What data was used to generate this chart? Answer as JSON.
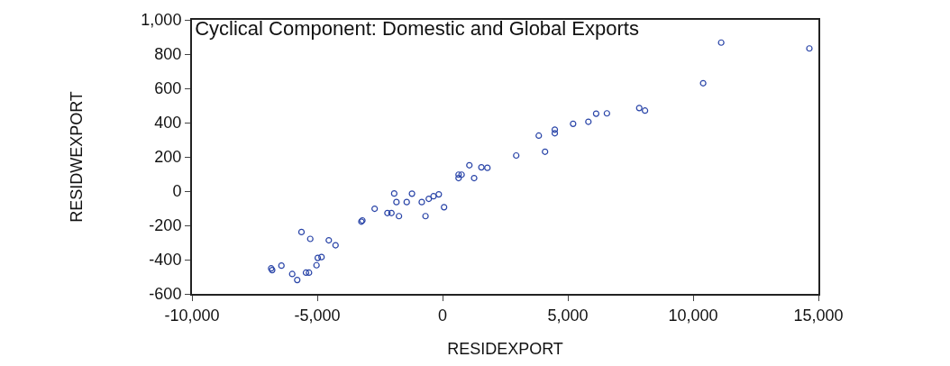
{
  "chart_data": {
    "type": "scatter",
    "title": "Cyclical Component: Domestic and Global Exports",
    "xlabel": "RESIDEXPORT",
    "ylabel": "RESIDWEXPORT",
    "x": [
      -6840,
      -6800,
      -6430,
      -6000,
      -5800,
      -5630,
      -5280,
      -5450,
      -5330,
      -5030,
      -4980,
      -4830,
      -4540,
      -4270,
      -3240,
      -3200,
      -2710,
      -2200,
      -2040,
      -1930,
      -1840,
      -1740,
      -1430,
      -1220,
      -830,
      -680,
      -550,
      -360,
      -150,
      60,
      640,
      760,
      640,
      1070,
      1260,
      1550,
      1790,
      2940,
      3840,
      4090,
      4480,
      4480,
      5210,
      5820,
      6130,
      6560,
      7850,
      8080,
      10400,
      11120,
      14640
    ],
    "values": [
      -451,
      -461,
      -435,
      -484,
      -519,
      -239,
      -279,
      -476,
      -476,
      -433,
      -390,
      -385,
      -287,
      -316,
      -178,
      -171,
      -103,
      -128,
      -128,
      -14,
      -64,
      -146,
      -64,
      -15,
      -64,
      -146,
      -45,
      -30,
      -19,
      -94,
      96,
      96,
      76,
      151,
      76,
      139,
      136,
      208,
      324,
      230,
      359,
      338,
      393,
      405,
      452,
      454,
      485,
      470,
      630,
      867,
      833
    ],
    "color": "#2a45a8",
    "marker": "circle",
    "xlim": [
      -10000,
      15000
    ],
    "xticks": [
      {
        "value": -10000,
        "label": "-10,000"
      },
      {
        "value": -5000,
        "label": "-5,000"
      },
      0,
      {
        "value": 5000,
        "label": "5,000"
      },
      {
        "value": 10000,
        "label": "10,000"
      },
      {
        "value": 15000,
        "label": "15,000"
      }
    ],
    "ylim": [
      -600,
      1000
    ],
    "yticks": [
      -600,
      -400,
      -200,
      0,
      200,
      400,
      600,
      800,
      {
        "value": 1000,
        "label": "1,000"
      }
    ]
  }
}
